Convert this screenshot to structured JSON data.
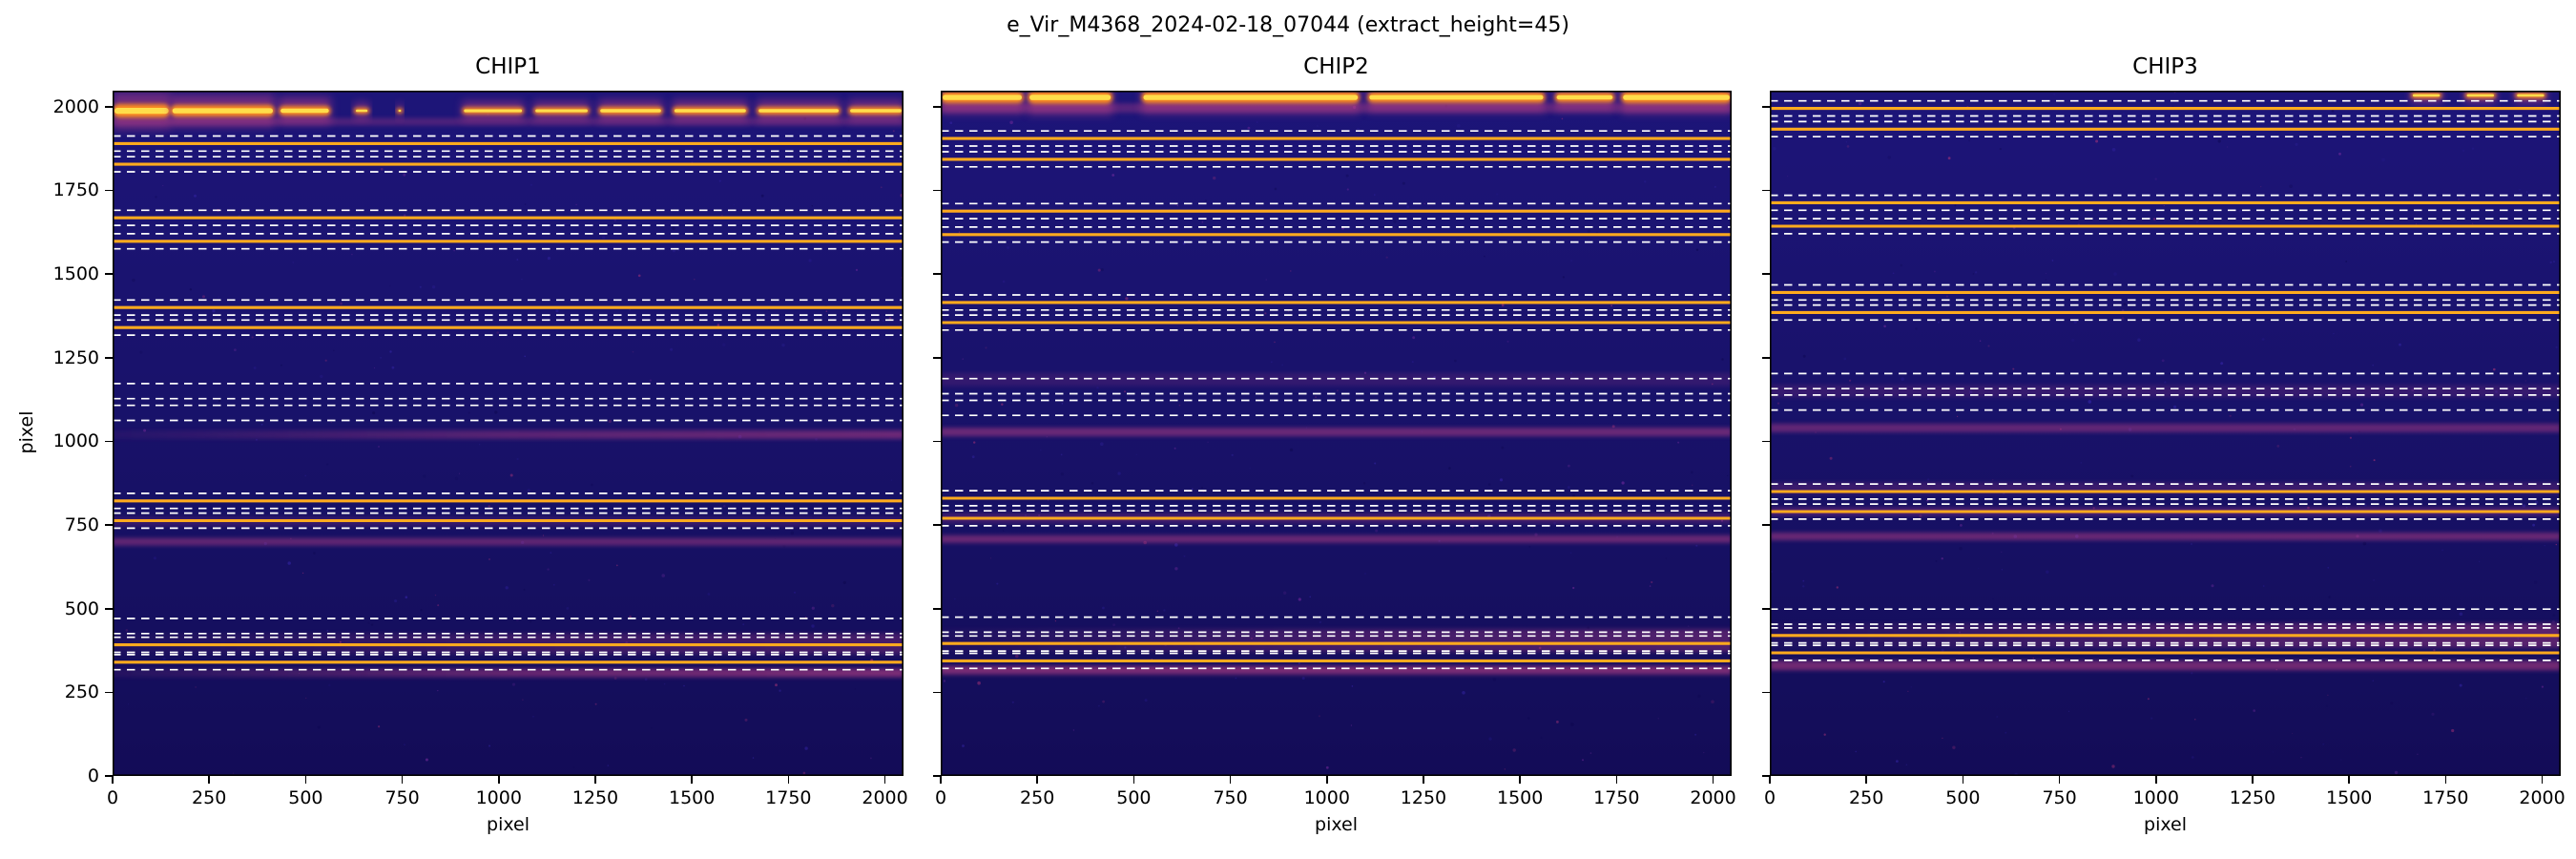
{
  "figure": {
    "title": "e_Vir_M4368_2024-02-18_07044  (extract_height=45)",
    "ylabel": "pixel"
  },
  "chart_data": {
    "type": "heatmap",
    "title": "e_Vir_M4368_2024-02-18_07044  (extract_height=45)",
    "ylabel": "pixel",
    "extract_height": 45,
    "xlim": [
      0,
      2048
    ],
    "ylim": [
      0,
      2048
    ],
    "x_ticks": [
      0,
      250,
      500,
      750,
      1000,
      1250,
      1500,
      1750,
      2000
    ],
    "y_ticks": [
      0,
      250,
      500,
      750,
      1000,
      1250,
      1500,
      1750,
      2000
    ],
    "colors": {
      "background": "#161062",
      "trace": "#ffaa1e",
      "window_dash": "#ffffff",
      "band": "#bb3f85",
      "hot_core": "#ffe24d",
      "hot_edge": "#ff8d1f",
      "colormap": "plasma-like dark blue background"
    },
    "panels": [
      {
        "title": "CHIP1",
        "xlabel": "pixel",
        "show_y_labels": true,
        "bright_band": {
          "y": 1988,
          "segments": [
            [
              0,
              150,
              14
            ],
            [
              150,
              420,
              12
            ],
            [
              430,
              565,
              10
            ],
            [
              625,
              665,
              6
            ],
            [
              735,
              752,
              5
            ],
            [
              905,
              1065,
              7
            ],
            [
              1090,
              1235,
              7
            ],
            [
              1258,
              1425,
              8
            ],
            [
              1450,
              1645,
              8
            ],
            [
              1668,
              1885,
              8
            ],
            [
              1905,
              2048,
              8
            ]
          ]
        },
        "pink_bands": [
          {
            "y": 1955,
            "h": 8,
            "o": 0.3
          },
          {
            "y": 1020,
            "h": 9,
            "o": 0.5,
            "fade": true
          },
          {
            "y": 760,
            "h": 10,
            "o": 0.2
          },
          {
            "y": 700,
            "h": 8,
            "o": 0.45
          },
          {
            "y": 395,
            "h": 22,
            "o": 0.28,
            "fade": true
          },
          {
            "y": 308,
            "h": 9,
            "o": 0.6,
            "fade": true
          }
        ],
        "orders": [
          {
            "y": 1890,
            "traced": true
          },
          {
            "y": 1828,
            "traced": true
          },
          {
            "y": 1668,
            "traced": true
          },
          {
            "y": 1598,
            "traced": true
          },
          {
            "y": 1400,
            "traced": true
          },
          {
            "y": 1340,
            "traced": true
          },
          {
            "y": 1150,
            "traced": false
          },
          {
            "y": 1085,
            "traced": false
          },
          {
            "y": 822,
            "traced": true
          },
          {
            "y": 763,
            "traced": true
          },
          {
            "y": 448,
            "traced": false
          },
          {
            "y": 392,
            "traced": true
          },
          {
            "y": 340,
            "traced": true
          }
        ]
      },
      {
        "title": "CHIP2",
        "xlabel": "pixel",
        "show_y_labels": false,
        "bright_band": {
          "y": 2028,
          "segments": [
            [
              0,
              215,
              12
            ],
            [
              225,
              445,
              13
            ],
            [
              520,
              1085,
              12
            ],
            [
              1105,
              1565,
              11
            ],
            [
              1590,
              1745,
              10
            ],
            [
              1762,
              2048,
              12
            ]
          ]
        },
        "pink_bands": [
          {
            "y": 1996,
            "h": 10,
            "o": 0.35
          },
          {
            "y": 1185,
            "h": 14,
            "o": 0.16
          },
          {
            "y": 1028,
            "h": 9,
            "o": 0.5
          },
          {
            "y": 770,
            "h": 10,
            "o": 0.28
          },
          {
            "y": 708,
            "h": 8,
            "o": 0.5
          },
          {
            "y": 405,
            "h": 24,
            "o": 0.35,
            "fade": true
          },
          {
            "y": 316,
            "h": 9,
            "o": 0.6
          }
        ],
        "orders": [
          {
            "y": 1905,
            "traced": true
          },
          {
            "y": 1843,
            "traced": true
          },
          {
            "y": 1688,
            "traced": true
          },
          {
            "y": 1618,
            "traced": true
          },
          {
            "y": 1415,
            "traced": true
          },
          {
            "y": 1355,
            "traced": true
          },
          {
            "y": 1165,
            "traced": false
          },
          {
            "y": 1100,
            "traced": false
          },
          {
            "y": 830,
            "traced": true
          },
          {
            "y": 770,
            "traced": true
          },
          {
            "y": 452,
            "traced": false
          },
          {
            "y": 396,
            "traced": true
          },
          {
            "y": 344,
            "traced": true
          }
        ]
      },
      {
        "title": "CHIP3",
        "xlabel": "pixel",
        "show_y_labels": false,
        "bright_band": {
          "y": 2034,
          "segments": [
            [
              1660,
              1740,
              6
            ],
            [
              1800,
              1880,
              6
            ],
            [
              1930,
              2010,
              6
            ]
          ]
        },
        "pink_bands": [
          {
            "y": 1150,
            "h": 13,
            "o": 0.18
          },
          {
            "y": 1040,
            "h": 9,
            "o": 0.45
          },
          {
            "y": 860,
            "h": 12,
            "o": 0.22
          },
          {
            "y": 790,
            "h": 8,
            "o": 0.38
          },
          {
            "y": 716,
            "h": 8,
            "o": 0.5
          },
          {
            "y": 420,
            "h": 26,
            "o": 0.4,
            "fade": true
          },
          {
            "y": 330,
            "h": 10,
            "o": 0.55
          }
        ],
        "orders": [
          {
            "y": 1995,
            "traced": true
          },
          {
            "y": 1933,
            "traced": true
          },
          {
            "y": 1713,
            "traced": true
          },
          {
            "y": 1643,
            "traced": true
          },
          {
            "y": 1445,
            "traced": true
          },
          {
            "y": 1385,
            "traced": true
          },
          {
            "y": 1180,
            "traced": false
          },
          {
            "y": 1116,
            "traced": false
          },
          {
            "y": 850,
            "traced": true
          },
          {
            "y": 790,
            "traced": true
          },
          {
            "y": 476,
            "traced": false
          },
          {
            "y": 420,
            "traced": true
          },
          {
            "y": 368,
            "traced": true
          }
        ]
      }
    ]
  }
}
